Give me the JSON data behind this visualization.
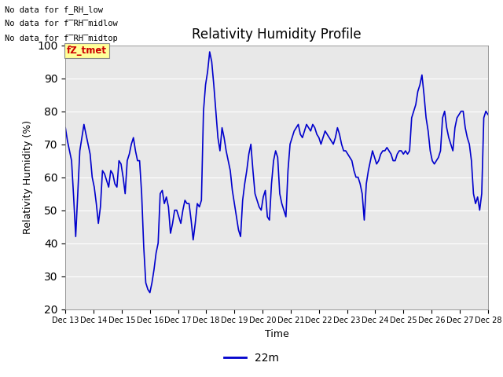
{
  "title": "Relativity Humidity Profile",
  "ylabel": "Relativity Humidity (%)",
  "xlabel": "Time",
  "ylim": [
    20,
    100
  ],
  "yticks": [
    20,
    30,
    40,
    50,
    60,
    70,
    80,
    90,
    100
  ],
  "line_color": "#0000CC",
  "line_width": 1.2,
  "legend_label": "22m",
  "legend_color": "#0000CC",
  "annotations": [
    "No data for f_RH_low",
    "No data for f̲RH̲midlow",
    "No data for f̲RH̲midtop"
  ],
  "tooltip_text": "fZ_tmet",
  "tooltip_bg": "#FFFF99",
  "tooltip_fg": "#CC0000",
  "bg_color": "#E8E8E8",
  "x_start_day": 13,
  "x_end_day": 28,
  "xtick_days": [
    13,
    14,
    15,
    16,
    17,
    18,
    19,
    20,
    21,
    22,
    23,
    24,
    25,
    26,
    27,
    28
  ],
  "rh_values": [
    75,
    71,
    68,
    65,
    54,
    42,
    55,
    68,
    72,
    76,
    73,
    70,
    67,
    60,
    57,
    52,
    46,
    51,
    62,
    61,
    59,
    57,
    62,
    61,
    58,
    57,
    65,
    64,
    60,
    55,
    65,
    67,
    70,
    72,
    68,
    65,
    65,
    55,
    39,
    28,
    26,
    25,
    28,
    32,
    37,
    40,
    55,
    56,
    52,
    54,
    51,
    43,
    46,
    50,
    50,
    48,
    46,
    50,
    53,
    52,
    52,
    47,
    41,
    46,
    52,
    51,
    53,
    80,
    88,
    92,
    98,
    95,
    88,
    80,
    72,
    68,
    75,
    72,
    68,
    65,
    62,
    56,
    52,
    48,
    44,
    42,
    53,
    58,
    62,
    67,
    70,
    62,
    55,
    53,
    51,
    50,
    54,
    56,
    48,
    47,
    58,
    65,
    68,
    66,
    55,
    52,
    50,
    48,
    62,
    70,
    72,
    74,
    75,
    76,
    73,
    72,
    74,
    76,
    75,
    74,
    76,
    75,
    73,
    72,
    70,
    72,
    74,
    73,
    72,
    71,
    70,
    72,
    75,
    73,
    70,
    68,
    68,
    67,
    66,
    65,
    62,
    60,
    60,
    58,
    55,
    47,
    58,
    62,
    65,
    68,
    66,
    64,
    65,
    67,
    68,
    68,
    69,
    68,
    67,
    65,
    65,
    67,
    68,
    68,
    67,
    68,
    67,
    68,
    78,
    80,
    82,
    86,
    88,
    91,
    85,
    78,
    74,
    68,
    65,
    64,
    65,
    66,
    68,
    78,
    80,
    75,
    72,
    70,
    68,
    75,
    78,
    79,
    80,
    80,
    75,
    72,
    70,
    65,
    55,
    52,
    54,
    50,
    55,
    78,
    80,
    79
  ]
}
